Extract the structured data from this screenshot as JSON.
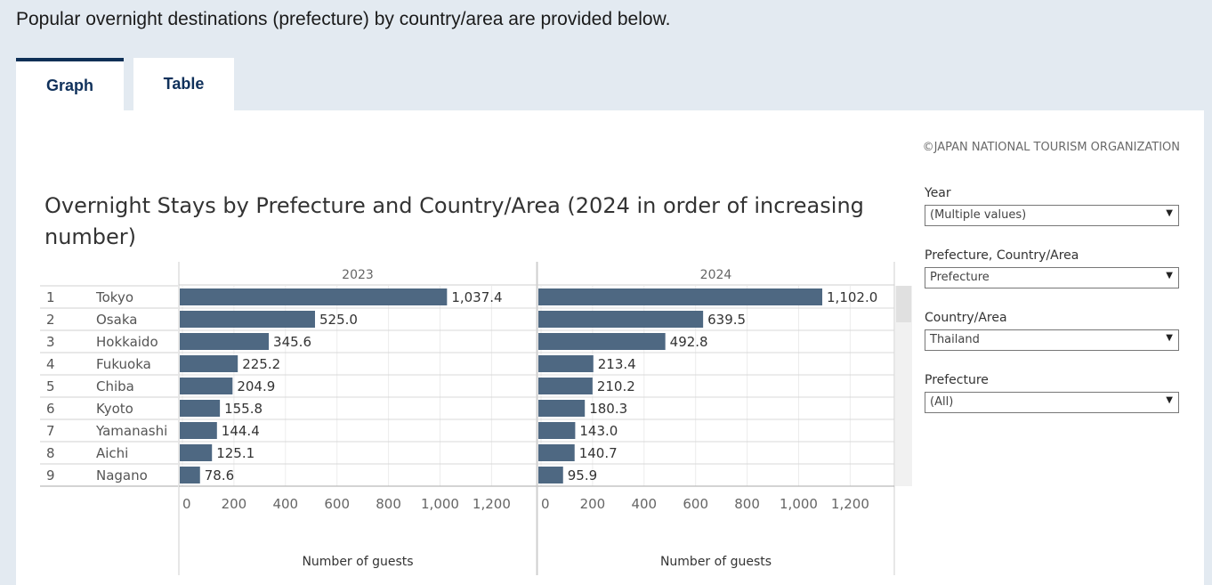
{
  "intro_text": "Popular overnight destinations (prefecture) by country/area are provided below.",
  "tabs": [
    {
      "label": "Graph"
    },
    {
      "label": "Table"
    }
  ],
  "copyright": "©JAPAN NATIONAL TOURISM ORGANIZATION",
  "chart_title": "Overnight Stays by Prefecture and Country/Area  (2024 in order of increasing number)",
  "filters": [
    {
      "label": "Year",
      "value": "(Multiple values)"
    },
    {
      "label": "Prefecture, Country/Area",
      "value": "Prefecture"
    },
    {
      "label": "Country/Area",
      "value": "Thailand"
    },
    {
      "label": "Prefecture",
      "value": "(All)"
    }
  ],
  "icons": {
    "dropdown": "chevron-down-icon"
  },
  "colors": {
    "bar": "#4e6882",
    "tab_accent": "#0e2f56"
  },
  "chart_data": {
    "type": "bar",
    "orientation": "horizontal",
    "ranks": [
      "1",
      "2",
      "3",
      "4",
      "5",
      "6",
      "7",
      "8",
      "9"
    ],
    "categories": [
      "Tokyo",
      "Osaka",
      "Hokkaido",
      "Fukuoka",
      "Chiba",
      "Kyoto",
      "Yamanashi",
      "Aichi",
      "Nagano"
    ],
    "series": [
      {
        "name": "2023",
        "values": [
          1037.4,
          525.0,
          345.6,
          225.2,
          204.9,
          155.8,
          144.4,
          125.1,
          78.6
        ],
        "labels": [
          "1,037.4",
          "525.0",
          "345.6",
          "225.2",
          "204.9",
          "155.8",
          "144.4",
          "125.1",
          "78.6"
        ]
      },
      {
        "name": "2024",
        "values": [
          1102.0,
          639.5,
          492.8,
          213.4,
          210.2,
          180.3,
          143.0,
          140.7,
          95.9
        ],
        "labels": [
          "1,102.0",
          "639.5",
          "492.8",
          "213.4",
          "210.2",
          "180.3",
          "143.0",
          "140.7",
          "95.9"
        ]
      }
    ],
    "xlabel": "Number of guests",
    "xlim": [
      0,
      1380
    ],
    "xticks": [
      0,
      200,
      400,
      600,
      800,
      1000,
      1200
    ],
    "xtick_labels": [
      "0",
      "200",
      "400",
      "600",
      "800",
      "1,000",
      "1,200"
    ],
    "grid": true
  }
}
